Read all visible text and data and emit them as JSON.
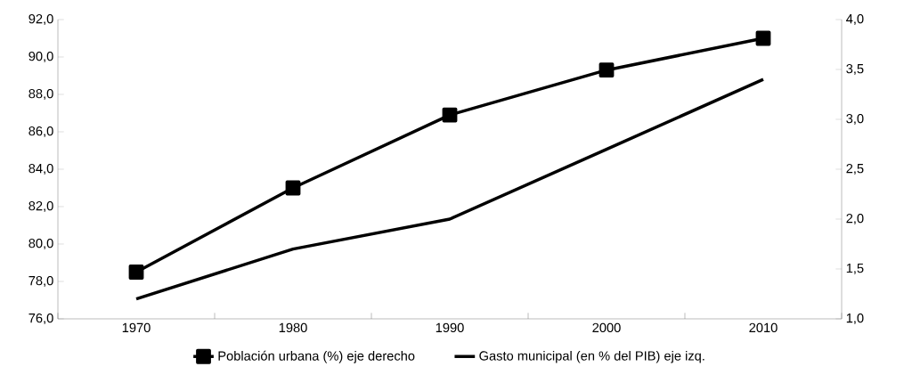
{
  "chart_data": {
    "type": "line",
    "categories": [
      "1970",
      "1980",
      "1990",
      "2000",
      "2010"
    ],
    "series": [
      {
        "name": "Población urbana (%) eje derecho",
        "color": "#000000",
        "marker": "square",
        "values": [
          78.5,
          83.0,
          86.9,
          89.3,
          91.0
        ]
      },
      {
        "name": "Gasto municipal (en % del PIB) eje izq.",
        "color": "#000000",
        "marker": "none",
        "axis": "y2",
        "values": [
          1.2,
          1.7,
          2.0,
          2.7,
          3.4
        ]
      }
    ],
    "ylim": [
      76,
      92
    ],
    "yticks": [
      {
        "value": 76,
        "label": "76,0"
      },
      {
        "value": 78,
        "label": "78,0"
      },
      {
        "value": 80,
        "label": "80,0"
      },
      {
        "value": 82,
        "label": "82,0"
      },
      {
        "value": 84,
        "label": "84,0"
      },
      {
        "value": 86,
        "label": "86,0"
      },
      {
        "value": 88,
        "label": "88,0"
      },
      {
        "value": 90,
        "label": "90,0"
      },
      {
        "value": 92,
        "label": "92,0"
      }
    ],
    "y2lim": [
      1,
      4
    ],
    "y2ticks": [
      {
        "value": 1,
        "label": "1,0"
      },
      {
        "value": 1.5,
        "label": "1,5"
      },
      {
        "value": 2,
        "label": "2,0"
      },
      {
        "value": 2.5,
        "label": "2,5"
      },
      {
        "value": 3,
        "label": "3,0"
      },
      {
        "value": 3.5,
        "label": "3,5"
      },
      {
        "value": 4,
        "label": "4,0"
      }
    ],
    "legend": "bottom",
    "grid": false
  }
}
